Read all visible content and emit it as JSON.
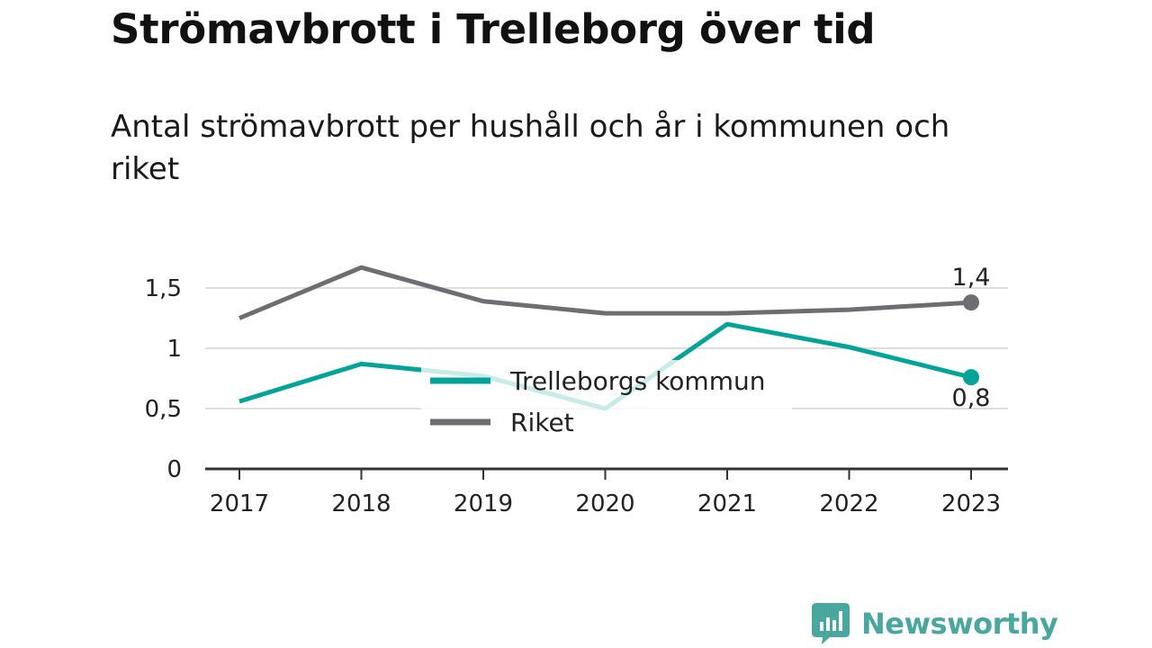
{
  "title": "Strömavbrott i Trelleborg över tid",
  "subtitle": "Antal strömavbrott per hushåll och år i kommunen och riket",
  "brand": "Newsworthy",
  "colors": {
    "kommun": "#00a398",
    "riket": "#6e6d74",
    "brand": "#4aa79f",
    "legend_overlay": "#ffffff"
  },
  "chart_data": {
    "type": "line",
    "title": "Strömavbrott i Trelleborg över tid",
    "subtitle": "Antal strömavbrott per hushåll och år i kommunen och riket",
    "x": [
      "2017",
      "2018",
      "2019",
      "2020",
      "2021",
      "2022",
      "2023"
    ],
    "series": [
      {
        "name": "Trelleborgs kommun",
        "key": "kommun",
        "values": [
          0.56,
          0.87,
          0.77,
          0.5,
          1.2,
          1.01,
          0.76
        ],
        "end_label": "0,8"
      },
      {
        "name": "Riket",
        "key": "riket",
        "values": [
          1.25,
          1.67,
          1.39,
          1.29,
          1.29,
          1.32,
          1.38
        ],
        "end_label": "1,4"
      }
    ],
    "yticks": [
      0,
      0.5,
      1,
      1.5
    ],
    "ytick_labels": [
      "0",
      "0,5",
      "1",
      "1,5"
    ],
    "ylim": [
      0,
      1.75
    ],
    "grid": true,
    "legend_position": "center"
  }
}
